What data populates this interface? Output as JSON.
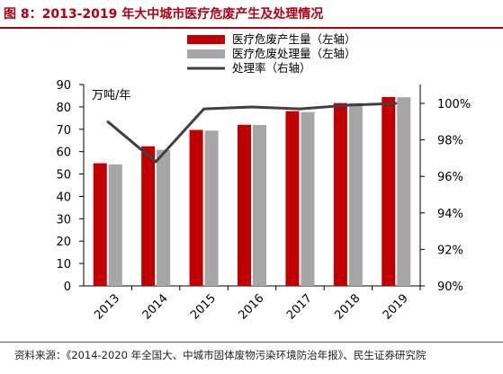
{
  "figure": {
    "title": "图 8：2013-2019 年大中城市医疗危废产生及处理情况",
    "source": "资料来源：《2014-2020 年全国大、中城市固体废物污染环境防治年报》、民生证券研究院"
  },
  "chart_data": {
    "type": "bar",
    "categories": [
      "2013",
      "2014",
      "2015",
      "2016",
      "2017",
      "2018",
      "2019"
    ],
    "series": [
      {
        "name": "医疗危废产生量（左轴）",
        "type": "bar",
        "axis": "left",
        "color": "#c00000",
        "values": [
          54.8,
          62.4,
          69.7,
          72.0,
          78.1,
          81.7,
          84.4
        ]
      },
      {
        "name": "医疗危废处理量（左轴）",
        "type": "bar",
        "axis": "left",
        "color": "#a6a6a6",
        "values": [
          54.3,
          60.8,
          69.4,
          71.9,
          77.7,
          81.7,
          84.3
        ]
      },
      {
        "name": "处理率（右轴）",
        "type": "line",
        "axis": "right",
        "color": "#404040",
        "values": [
          99.0,
          96.8,
          99.7,
          99.8,
          99.7,
          99.9,
          100.0
        ]
      }
    ],
    "y_left": {
      "label": "万吨/年",
      "min": 0,
      "max": 90,
      "ticks": [
        "0",
        "10",
        "20",
        "30",
        "40",
        "50",
        "60",
        "70",
        "80",
        "90"
      ]
    },
    "y_right": {
      "label": "",
      "min": 90,
      "max": 100.5,
      "ticks": [
        "90%",
        "92%",
        "94%",
        "96%",
        "98%",
        "100%"
      ],
      "tick_values": [
        90,
        92,
        94,
        96,
        98,
        100
      ]
    },
    "grid": false,
    "legend_position": "top-right"
  }
}
